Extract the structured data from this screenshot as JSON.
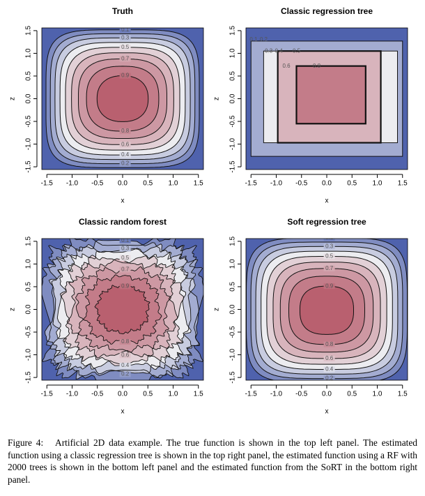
{
  "chart_data": [
    {
      "type": "contour",
      "style": "smooth",
      "title": "Truth",
      "xlabel": "x",
      "ylabel": "z",
      "xlim": [
        -1.6,
        1.6
      ],
      "ylim": [
        -1.56,
        1.56
      ],
      "xticks": [
        -1.5,
        {
          "value": -1.0,
          "label": "-1.0"
        },
        -0.5,
        {
          "value": 0.0,
          "label": "0.0"
        },
        0.5,
        {
          "value": 1.0,
          "label": "1.0"
        },
        1.5
      ],
      "yticks": [
        -1.5,
        {
          "value": -1.0,
          "label": "-1.0"
        },
        -0.5,
        {
          "value": 0.0,
          "label": "0.0"
        },
        0.5,
        {
          "value": 1.0,
          "label": "1.0"
        },
        1.5
      ],
      "levels": [
        0.1,
        0.2,
        0.3,
        0.4,
        0.5,
        0.6,
        0.7,
        0.8,
        0.9
      ]
    },
    {
      "type": "tree",
      "title": "Classic regression tree",
      "xlabel": "x",
      "ylabel": "z",
      "xlim": [
        -1.6,
        1.6
      ],
      "ylim": [
        -1.56,
        1.56
      ],
      "xticks": [
        -1.5,
        {
          "value": -1.0,
          "label": "-1.0"
        },
        -0.5,
        {
          "value": 0.0,
          "label": "0.0"
        },
        0.5,
        {
          "value": 1.0,
          "label": "1.0"
        },
        1.5
      ],
      "yticks": [
        -1.5,
        {
          "value": -1.0,
          "label": "-1.0"
        },
        -0.5,
        {
          "value": 0.0,
          "label": "0.0"
        },
        0.5,
        {
          "value": 1.0,
          "label": "1.0"
        },
        1.5
      ],
      "regions": [
        {
          "x": [
            -1.5,
            1.5
          ],
          "z": [
            -1.27,
            1.27
          ],
          "value": 0.2
        },
        {
          "x": [
            -1.25,
            1.4
          ],
          "z": [
            -0.97,
            1.05
          ],
          "value": 0.4
        },
        {
          "x": [
            -0.97,
            1.07
          ],
          "z": [
            -0.97,
            1.05
          ],
          "value": 0.6
        },
        {
          "x": [
            -0.6,
            0.77
          ],
          "z": [
            -0.55,
            0.72
          ],
          "value": 0.8
        }
      ],
      "levels": [
        0.1,
        0.2,
        0.3,
        0.4,
        0.5,
        0.6,
        0.8
      ]
    },
    {
      "type": "contour",
      "style": "noisy",
      "title": "Classic random forest",
      "xlabel": "x",
      "ylabel": "z",
      "xlim": [
        -1.6,
        1.6
      ],
      "ylim": [
        -1.56,
        1.56
      ],
      "xticks": [
        -1.5,
        {
          "value": -1.0,
          "label": "-1.0"
        },
        -0.5,
        {
          "value": 0.0,
          "label": "0.0"
        },
        0.5,
        {
          "value": 1.0,
          "label": "1.0"
        },
        1.5
      ],
      "yticks": [
        -1.5,
        {
          "value": -1.0,
          "label": "-1.0"
        },
        -0.5,
        {
          "value": 0.0,
          "label": "0.0"
        },
        0.5,
        {
          "value": 1.0,
          "label": "1.0"
        },
        1.5
      ],
      "levels": [
        0.1,
        0.2,
        0.3,
        0.4,
        0.5,
        0.6,
        0.7,
        0.8,
        0.9
      ]
    },
    {
      "type": "contour",
      "style": "soft",
      "title": "Soft regression tree",
      "xlabel": "x",
      "ylabel": "z",
      "xlim": [
        -1.6,
        1.6
      ],
      "ylim": [
        -1.56,
        1.56
      ],
      "xticks": [
        -1.5,
        {
          "value": -1.0,
          "label": "-1.0"
        },
        -0.5,
        {
          "value": 0.0,
          "label": "0.0"
        },
        0.5,
        {
          "value": 1.0,
          "label": "1.0"
        },
        1.5
      ],
      "yticks": [
        -1.5,
        {
          "value": -1.0,
          "label": "-1.0"
        },
        -0.5,
        {
          "value": 0.0,
          "label": "0.0"
        },
        0.5,
        {
          "value": 1.0,
          "label": "1.0"
        },
        1.5
      ],
      "levels": [
        0.1,
        0.2,
        0.3,
        0.4,
        0.5,
        0.6,
        0.7,
        0.8,
        0.9
      ]
    }
  ],
  "caption": {
    "label": "Figure 4:",
    "text": "Artificial 2D data example.  The true function is shown in the top left panel. The estimated function using a classic regression tree is shown in the top right panel, the estimated function using a RF with 2000 trees is shown in the bottom left panel and the estimated function from the SoRT in the bottom right panel."
  }
}
